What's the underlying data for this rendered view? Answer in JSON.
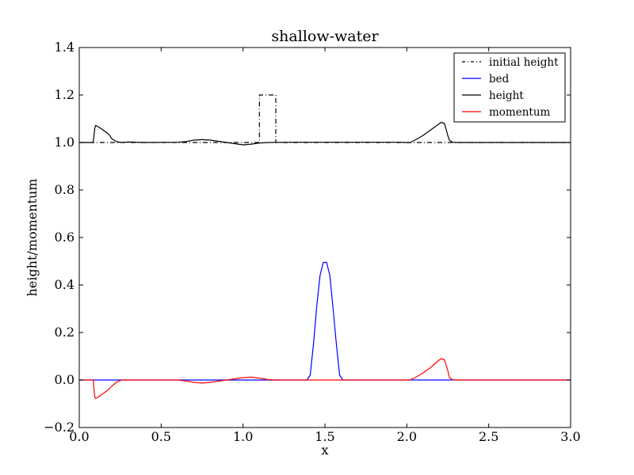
{
  "chart_data": {
    "type": "line",
    "title": "shallow-water",
    "xlabel": "x",
    "ylabel": "height/momentum",
    "xlim": [
      0.0,
      3.0
    ],
    "ylim": [
      -0.2,
      1.4
    ],
    "xticks": [
      0.0,
      0.5,
      1.0,
      1.5,
      2.0,
      2.5,
      3.0
    ],
    "xtick_labels": [
      "0.0",
      "0.5",
      "1.0",
      "1.5",
      "2.0",
      "2.5",
      "3.0"
    ],
    "yticks": [
      -0.2,
      0.0,
      0.2,
      0.4,
      0.6,
      0.8,
      1.0,
      1.2,
      1.4
    ],
    "ytick_labels": [
      "−0.2",
      "0.0",
      "0.2",
      "0.4",
      "0.6",
      "0.8",
      "1.0",
      "1.2",
      "1.4"
    ],
    "grid": false,
    "legend_position": "top-right",
    "series": [
      {
        "name": "initial height",
        "color": "#000000",
        "style": "dashdot",
        "x": [
          0.0,
          1.1,
          1.1,
          1.2,
          1.2,
          3.0
        ],
        "y": [
          1.0,
          1.0,
          1.2,
          1.2,
          1.0,
          1.0
        ]
      },
      {
        "name": "bed",
        "color": "#0000ff",
        "style": "solid",
        "x": [
          0.0,
          1.39,
          1.41,
          1.43,
          1.45,
          1.47,
          1.49,
          1.51,
          1.53,
          1.55,
          1.57,
          1.59,
          1.61,
          3.0
        ],
        "y": [
          0.0,
          0.0,
          0.02,
          0.15,
          0.31,
          0.44,
          0.495,
          0.495,
          0.44,
          0.3,
          0.15,
          0.02,
          0.0,
          0.0
        ]
      },
      {
        "name": "height",
        "color": "#000000",
        "style": "solid",
        "x": [
          0.0,
          0.085,
          0.09,
          0.095,
          0.1,
          0.12,
          0.15,
          0.18,
          0.2,
          0.23,
          0.26,
          0.3,
          0.4,
          0.6,
          0.65,
          0.7,
          0.75,
          0.8,
          0.85,
          0.9,
          0.95,
          1.0,
          1.05,
          1.1,
          1.15,
          1.3,
          1.6,
          1.95,
          2.0,
          2.02,
          2.05,
          2.1,
          2.15,
          2.19,
          2.21,
          2.23,
          2.25,
          2.26,
          2.28,
          2.3,
          3.0
        ],
        "y": [
          1.0,
          1.0,
          1.03,
          1.06,
          1.072,
          1.065,
          1.05,
          1.035,
          1.015,
          1.003,
          1.0,
          1.002,
          1.0,
          1.001,
          1.004,
          1.01,
          1.012,
          1.01,
          1.005,
          1.0,
          0.995,
          0.99,
          0.993,
          0.998,
          1.0,
          1.001,
          1.001,
          1.001,
          1.0,
          1.0,
          1.01,
          1.03,
          1.055,
          1.075,
          1.085,
          1.08,
          1.03,
          1.01,
          1.001,
          1.0,
          1.0
        ]
      },
      {
        "name": "momentum",
        "color": "#ff0000",
        "style": "solid",
        "x": [
          0.0,
          0.085,
          0.09,
          0.095,
          0.1,
          0.12,
          0.15,
          0.18,
          0.2,
          0.23,
          0.26,
          0.3,
          0.6,
          0.65,
          0.7,
          0.75,
          0.8,
          0.85,
          0.9,
          0.95,
          1.0,
          1.05,
          1.1,
          1.15,
          1.2,
          1.9,
          2.0,
          2.02,
          2.05,
          2.1,
          2.15,
          2.19,
          2.21,
          2.23,
          2.25,
          2.26,
          2.28,
          2.3,
          3.0
        ],
        "y": [
          0.0,
          0.0,
          -0.04,
          -0.07,
          -0.078,
          -0.07,
          -0.055,
          -0.04,
          -0.025,
          -0.008,
          0.0,
          0.0,
          0.0,
          -0.004,
          -0.01,
          -0.013,
          -0.01,
          -0.005,
          0.0,
          0.005,
          0.01,
          0.012,
          0.008,
          0.002,
          0.0,
          0.0,
          0.0,
          0.0,
          0.01,
          0.03,
          0.055,
          0.08,
          0.09,
          0.085,
          0.04,
          0.01,
          0.001,
          0.0,
          0.0
        ]
      }
    ]
  }
}
